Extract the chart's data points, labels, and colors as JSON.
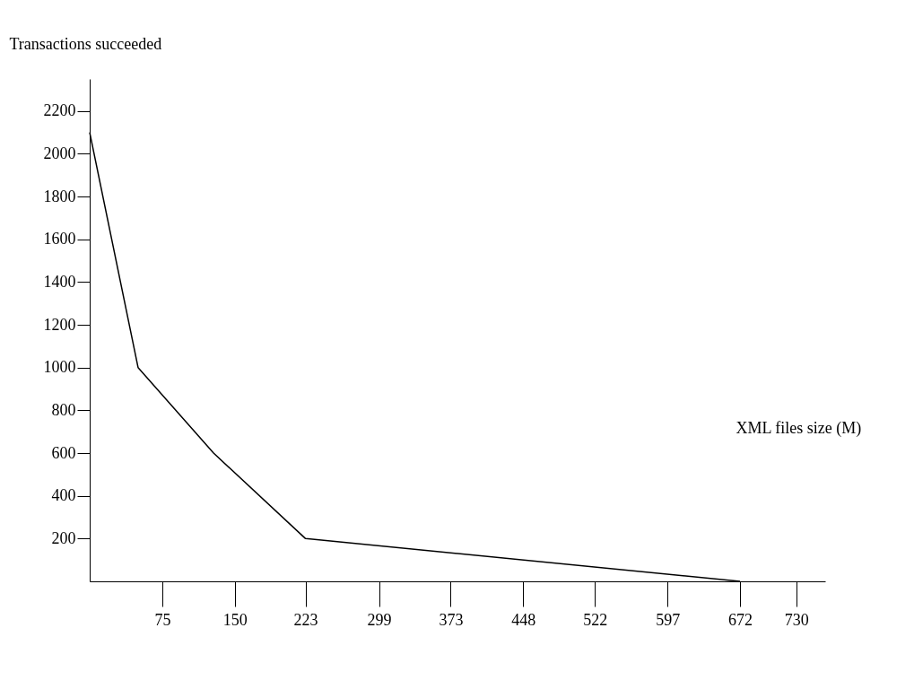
{
  "chart_data": {
    "type": "line",
    "xlabel": "XML files size (M)",
    "ylabel": "Transactions succeeded",
    "x": [
      0,
      50,
      128,
      223,
      672
    ],
    "series": [
      {
        "color": "#000000",
        "values": [
          2100,
          1000,
          600,
          200,
          0
        ]
      }
    ],
    "xlim": [
      0,
      760
    ],
    "xticks": [
      75,
      150,
      223,
      299,
      373,
      448,
      522,
      597,
      672,
      730
    ],
    "ylim": [
      0,
      2350
    ],
    "yticks": [
      200,
      400,
      600,
      800,
      1000,
      1200,
      1400,
      1600,
      1800,
      2000,
      2200
    ],
    "grid": false,
    "legend": false,
    "marker": "none",
    "line_style": "solid"
  }
}
